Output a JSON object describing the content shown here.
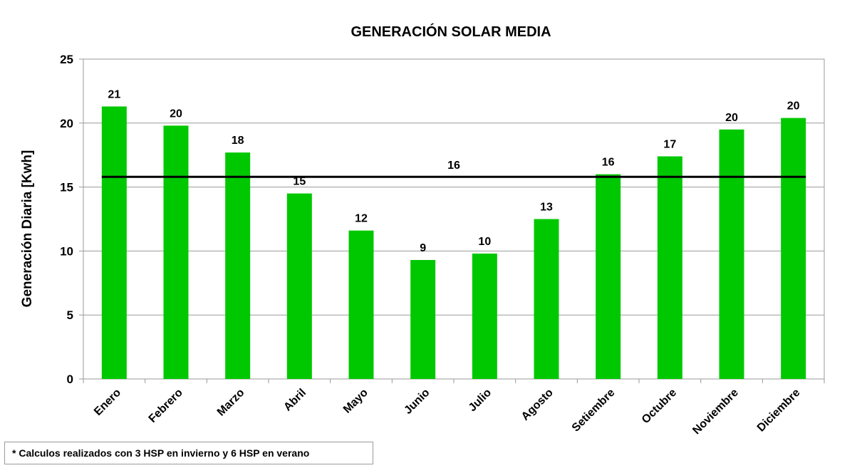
{
  "chart_data": {
    "type": "bar",
    "title": "GENERACIÓN SOLAR MEDIA",
    "xlabel": "",
    "ylabel": "Generación Diaria [Kwh]",
    "ylim": [
      0,
      25
    ],
    "yticks": [
      0,
      5,
      10,
      15,
      20,
      25
    ],
    "grid": true,
    "categories": [
      "Enero",
      "Febrero",
      "Marzo",
      "Abril",
      "Mayo",
      "Junio",
      "Julio",
      "Agosto",
      "Setiembre",
      "Octubre",
      "Noviembre",
      "Diciembre"
    ],
    "values": [
      21.3,
      19.8,
      17.7,
      14.5,
      11.6,
      9.3,
      9.8,
      12.5,
      16.0,
      17.4,
      19.5,
      20.4
    ],
    "data_labels": [
      "21",
      "20",
      "18",
      "15",
      "12",
      "9",
      "10",
      "13",
      "16",
      "17",
      "20",
      "20"
    ],
    "average": {
      "value": 15.8,
      "label": "16"
    },
    "bar_color": "#00c800",
    "average_line_color": "#000000"
  },
  "footnote": "* Calculos realizados con 3 HSP en invierno y 6 HSP en verano"
}
